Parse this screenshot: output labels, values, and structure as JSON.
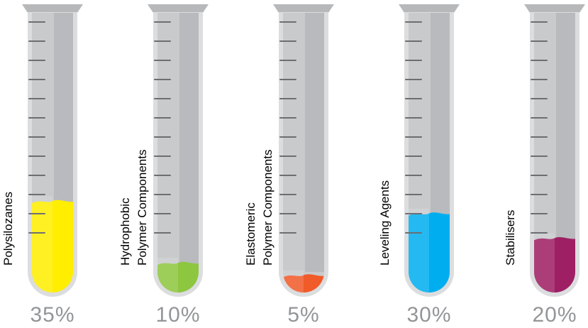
{
  "chart_data": {
    "type": "bar",
    "categories": [
      [
        "Polysilozanes"
      ],
      [
        "Hydrophobic",
        "Polymer Components"
      ],
      [
        "Elastomeric",
        "Polymer Components"
      ],
      [
        "Leveling Agents"
      ],
      [
        "Stabilisers"
      ]
    ],
    "values": [
      35,
      10,
      5,
      30,
      20
    ],
    "value_labels": [
      "35%",
      "10%",
      "5%",
      "30%",
      "20%"
    ],
    "colors": [
      "#ffee00",
      "#8dc63f",
      "#f15a29",
      "#00aeef",
      "#9e1f63"
    ],
    "tube_color": "#c9cacc",
    "ylim": [
      0,
      100
    ]
  }
}
